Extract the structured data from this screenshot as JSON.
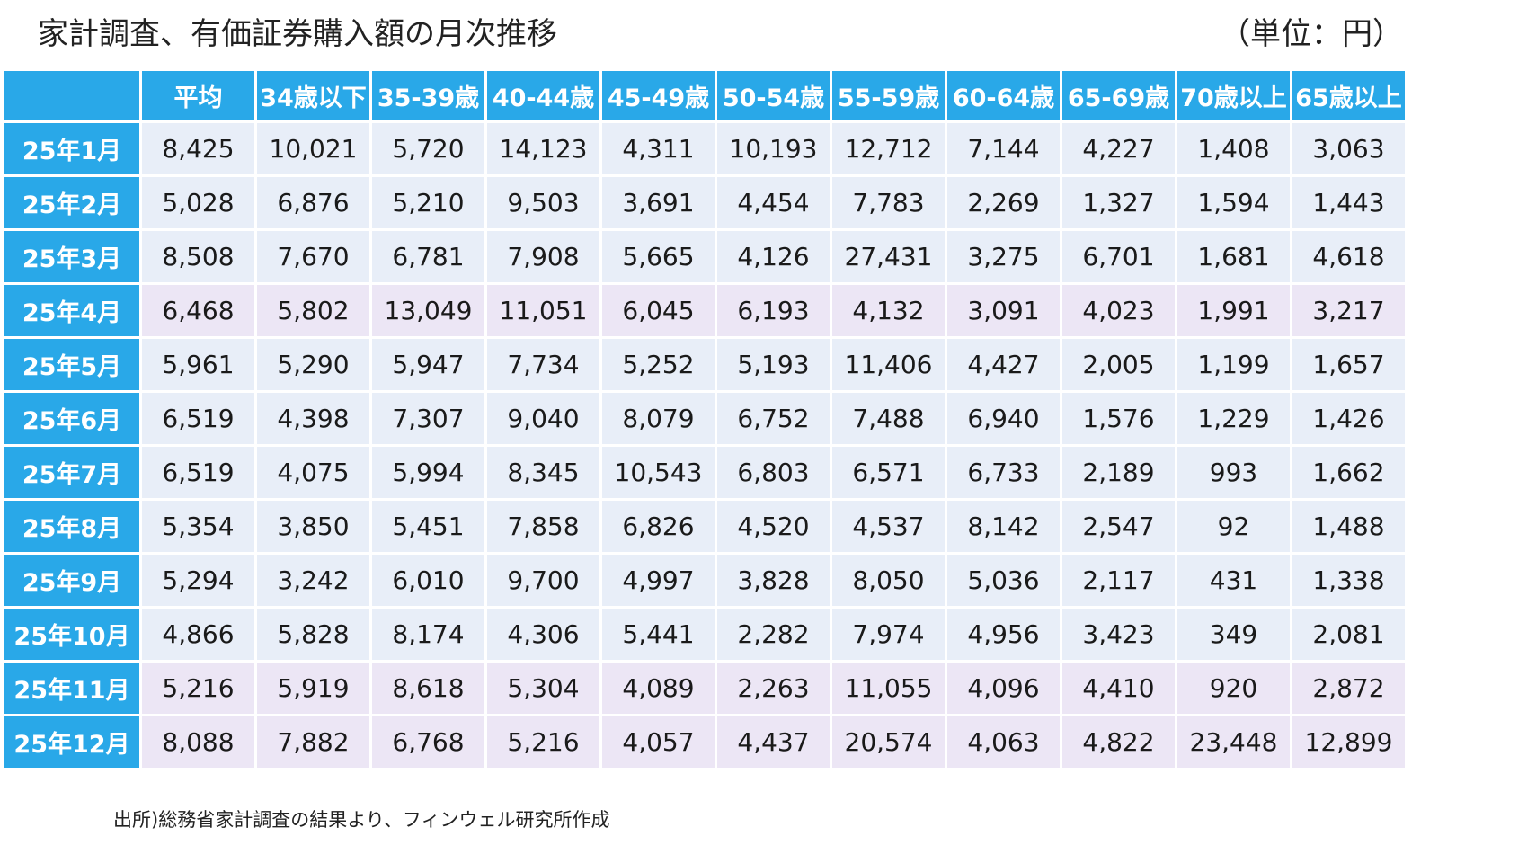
{
  "page": {
    "title": "家計調査、有価証券購入額の月次推移",
    "unit": "（単位：円）",
    "source": "出所)総務省家計調査の結果より、フィンウェル研究所作成"
  },
  "colors": {
    "header": "#29a8e8",
    "row_normal": "#e8eef8",
    "row_highlight": "#ece6f5"
  },
  "chart_data": {
    "type": "table",
    "title": "家計調査、有価証券購入額の月次推移",
    "unit": "（単位：円）",
    "columns": [
      "平均",
      "34歳以下",
      "35-39歳",
      "40-44歳",
      "45-49歳",
      "50-54歳",
      "55-59歳",
      "60-64歳",
      "65-69歳",
      "70歳以上",
      "65歳以上"
    ],
    "rows": [
      {
        "label": "25年1月",
        "highlight": false,
        "values": [
          "8,425",
          "10,021",
          "5,720",
          "14,123",
          "4,311",
          "10,193",
          "12,712",
          "7,144",
          "4,227",
          "1,408",
          "3,063"
        ]
      },
      {
        "label": "25年2月",
        "highlight": false,
        "values": [
          "5,028",
          "6,876",
          "5,210",
          "9,503",
          "3,691",
          "4,454",
          "7,783",
          "2,269",
          "1,327",
          "1,594",
          "1,443"
        ]
      },
      {
        "label": "25年3月",
        "highlight": false,
        "values": [
          "8,508",
          "7,670",
          "6,781",
          "7,908",
          "5,665",
          "4,126",
          "27,431",
          "3,275",
          "6,701",
          "1,681",
          "4,618"
        ]
      },
      {
        "label": "25年4月",
        "highlight": true,
        "values": [
          "6,468",
          "5,802",
          "13,049",
          "11,051",
          "6,045",
          "6,193",
          "4,132",
          "3,091",
          "4,023",
          "1,991",
          "3,217"
        ]
      },
      {
        "label": "25年5月",
        "highlight": false,
        "values": [
          "5,961",
          "5,290",
          "5,947",
          "7,734",
          "5,252",
          "5,193",
          "11,406",
          "4,427",
          "2,005",
          "1,199",
          "1,657"
        ]
      },
      {
        "label": "25年6月",
        "highlight": false,
        "values": [
          "6,519",
          "4,398",
          "7,307",
          "9,040",
          "8,079",
          "6,752",
          "7,488",
          "6,940",
          "1,576",
          "1,229",
          "1,426"
        ]
      },
      {
        "label": "25年7月",
        "highlight": false,
        "values": [
          "6,519",
          "4,075",
          "5,994",
          "8,345",
          "10,543",
          "6,803",
          "6,571",
          "6,733",
          "2,189",
          "993",
          "1,662"
        ]
      },
      {
        "label": "25年8月",
        "highlight": false,
        "values": [
          "5,354",
          "3,850",
          "5,451",
          "7,858",
          "6,826",
          "4,520",
          "4,537",
          "8,142",
          "2,547",
          "92",
          "1,488"
        ]
      },
      {
        "label": "25年9月",
        "highlight": false,
        "values": [
          "5,294",
          "3,242",
          "6,010",
          "9,700",
          "4,997",
          "3,828",
          "8,050",
          "5,036",
          "2,117",
          "431",
          "1,338"
        ]
      },
      {
        "label": "25年10月",
        "highlight": false,
        "values": [
          "4,866",
          "5,828",
          "8,174",
          "4,306",
          "5,441",
          "2,282",
          "7,974",
          "4,956",
          "3,423",
          "349",
          "2,081"
        ]
      },
      {
        "label": "25年11月",
        "highlight": true,
        "values": [
          "5,216",
          "5,919",
          "8,618",
          "5,304",
          "4,089",
          "2,263",
          "11,055",
          "4,096",
          "4,410",
          "920",
          "2,872"
        ]
      },
      {
        "label": "25年12月",
        "highlight": true,
        "values": [
          "8,088",
          "7,882",
          "6,768",
          "5,216",
          "4,057",
          "4,437",
          "20,574",
          "4,063",
          "4,822",
          "23,448",
          "12,899"
        ]
      }
    ]
  }
}
